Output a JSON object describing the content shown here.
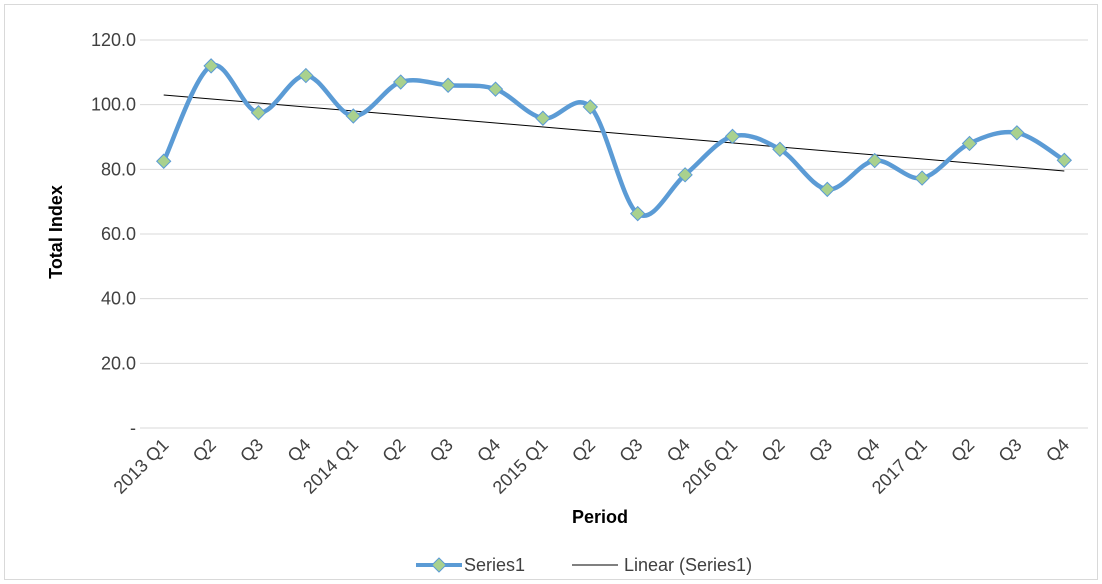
{
  "chart_data": {
    "type": "line",
    "xlabel": "Period",
    "ylabel": "Total Index",
    "ylim": [
      0,
      120
    ],
    "y_ticks": [
      0,
      20,
      40,
      60,
      80,
      100,
      120
    ],
    "y_tick_labels": [
      "-",
      "20.0",
      "40.0",
      "60.0",
      "80.0",
      "100.0",
      "120.0"
    ],
    "categories": [
      "2013 Q1",
      "Q2",
      "Q3",
      "Q4",
      "2014 Q1",
      "Q2",
      "Q3",
      "Q4",
      "2015 Q1",
      "Q2",
      "Q3",
      "Q4",
      "2016 Q1",
      "Q2",
      "Q3",
      "Q4",
      "2017 Q1",
      "Q2",
      "Q3",
      "Q4"
    ],
    "series": [
      {
        "name": "Series1",
        "values": [
          82.5,
          112.0,
          97.5,
          109.0,
          96.5,
          107.0,
          106.0,
          104.8,
          95.8,
          99.3,
          66.3,
          78.3,
          90.2,
          86.2,
          73.8,
          82.7,
          77.3,
          88.0,
          91.3,
          82.8
        ],
        "line_style": "smoothed",
        "color": "#5B9BD5",
        "marker": "diamond",
        "marker_color": "#A9D18E"
      }
    ],
    "trendline": {
      "name": "Linear (Series1)",
      "type": "linear",
      "start": 103.0,
      "end": 79.5,
      "color": "#000000"
    },
    "grid": true,
    "legend_position": "bottom"
  }
}
